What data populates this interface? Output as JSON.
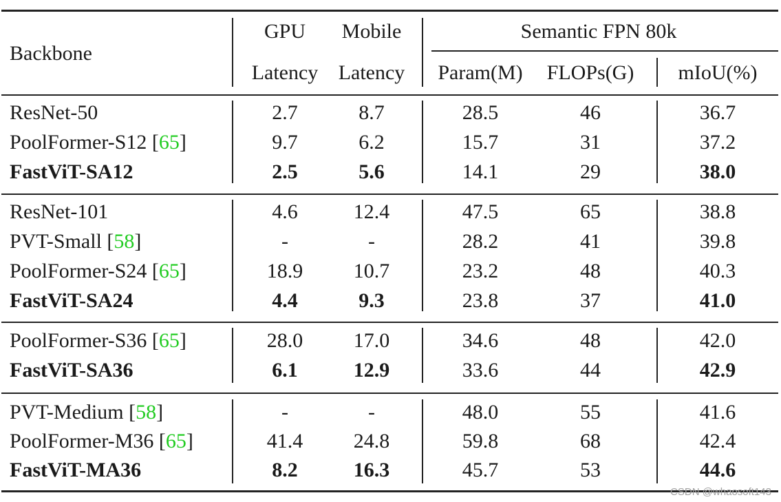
{
  "header": {
    "backbone": "Backbone",
    "gpu": "GPU",
    "mobile": "Mobile",
    "latency_gpu": "Latency",
    "latency_mobile": "Latency",
    "group": "Semantic FPN 80k",
    "param": "Param(M)",
    "flops": "FLOPs(G)",
    "miou": "mIoU(%)"
  },
  "rows": [
    {
      "name": "ResNet-50",
      "cite": "",
      "gpu": "2.7",
      "mobile": "8.7",
      "param": "28.5",
      "flops": "46",
      "miou": "36.7",
      "bold": false,
      "bold_miou": false
    },
    {
      "name": "PoolFormer-S12 [",
      "cite": "65",
      "close": "]",
      "gpu": "9.7",
      "mobile": "6.2",
      "param": "15.7",
      "flops": "31",
      "miou": "37.2",
      "bold": false,
      "bold_miou": false
    },
    {
      "name": "FastViT-SA12",
      "cite": "",
      "gpu": "2.5",
      "mobile": "5.6",
      "param": "14.1",
      "flops": "29",
      "miou": "38.0",
      "bold": true,
      "bold_miou": true
    },
    {
      "name": "ResNet-101",
      "cite": "",
      "gpu": "4.6",
      "mobile": "12.4",
      "param": "47.5",
      "flops": "65",
      "miou": "38.8",
      "bold": false,
      "bold_miou": false
    },
    {
      "name": "PVT-Small [",
      "cite": "58",
      "close": "]",
      "gpu": "-",
      "mobile": "-",
      "param": "28.2",
      "flops": "41",
      "miou": "39.8",
      "bold": false,
      "bold_miou": false
    },
    {
      "name": "PoolFormer-S24 [",
      "cite": "65",
      "close": "]",
      "gpu": "18.9",
      "mobile": "10.7",
      "param": "23.2",
      "flops": "48",
      "miou": "40.3",
      "bold": false,
      "bold_miou": false
    },
    {
      "name": "FastViT-SA24",
      "cite": "",
      "gpu": "4.4",
      "mobile": "9.3",
      "param": "23.8",
      "flops": "37",
      "miou": "41.0",
      "bold": true,
      "bold_miou": true
    },
    {
      "name": "PoolFormer-S36 [",
      "cite": "65",
      "close": "]",
      "gpu": "28.0",
      "mobile": "17.0",
      "param": "34.6",
      "flops": "48",
      "miou": "42.0",
      "bold": false,
      "bold_miou": false
    },
    {
      "name": "FastViT-SA36",
      "cite": "",
      "gpu": "6.1",
      "mobile": "12.9",
      "param": "33.6",
      "flops": "44",
      "miou": "42.9",
      "bold": true,
      "bold_miou": true
    },
    {
      "name": "PVT-Medium [",
      "cite": "58",
      "close": "]",
      "gpu": "-",
      "mobile": "-",
      "param": "48.0",
      "flops": "55",
      "miou": "41.6",
      "bold": false,
      "bold_miou": false
    },
    {
      "name": "PoolFormer-M36 [",
      "cite": "65",
      "close": "]",
      "gpu": "41.4",
      "mobile": "24.8",
      "param": "59.8",
      "flops": "68",
      "miou": "42.4",
      "bold": false,
      "bold_miou": false
    },
    {
      "name": "FastViT-MA36",
      "cite": "",
      "gpu": "8.2",
      "mobile": "16.3",
      "param": "45.7",
      "flops": "53",
      "miou": "44.6",
      "bold": true,
      "bold_miou": true
    }
  ],
  "watermark": "CSDN @whaosoft143"
}
